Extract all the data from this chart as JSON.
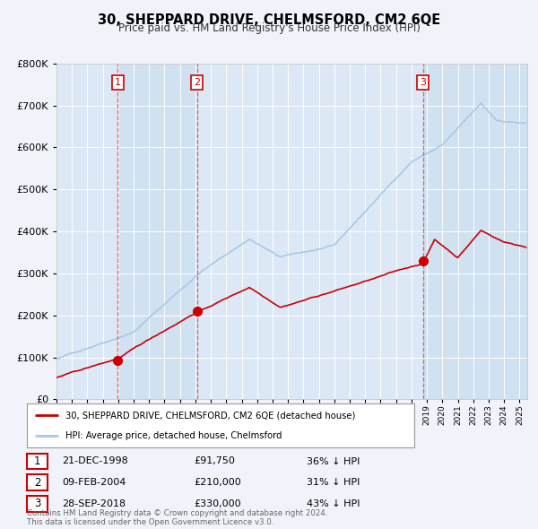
{
  "title": "30, SHEPPARD DRIVE, CHELMSFORD, CM2 6QE",
  "subtitle": "Price paid vs. HM Land Registry's House Price Index (HPI)",
  "hpi_color": "#a8c8e8",
  "sale_color": "#cc0000",
  "background_color": "#f0f4fa",
  "plot_bg": "#dce8f5",
  "grid_color": "#ffffff",
  "sale_points": [
    {
      "date_num": 1998.97,
      "price": 91750,
      "label": "1"
    },
    {
      "date_num": 2004.1,
      "price": 210000,
      "label": "2"
    },
    {
      "date_num": 2018.74,
      "price": 330000,
      "label": "3"
    }
  ],
  "sale_dates_text": [
    "21-DEC-1998",
    "09-FEB-2004",
    "28-SEP-2018"
  ],
  "sale_prices_text": [
    "£91,750",
    "£210,000",
    "£330,000"
  ],
  "sale_pct_text": [
    "36% ↓ HPI",
    "31% ↓ HPI",
    "43% ↓ HPI"
  ],
  "legend_sale_label": "30, SHEPPARD DRIVE, CHELMSFORD, CM2 6QE (detached house)",
  "legend_hpi_label": "HPI: Average price, detached house, Chelmsford",
  "footer": "Contains HM Land Registry data © Crown copyright and database right 2024.\nThis data is licensed under the Open Government Licence v3.0.",
  "ylim": [
    0,
    800000
  ],
  "xlim_start": 1995.0,
  "xlim_end": 2025.5
}
